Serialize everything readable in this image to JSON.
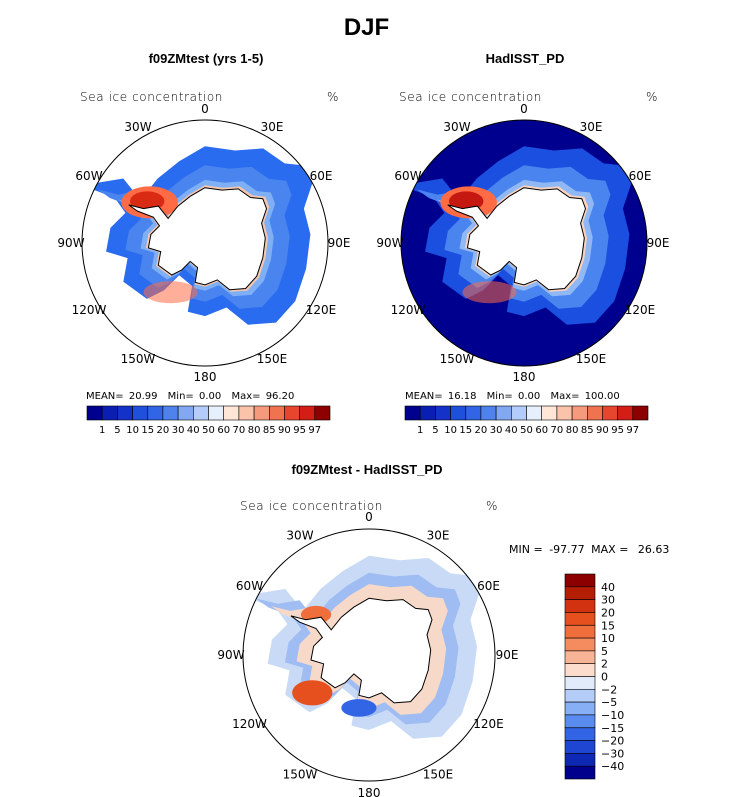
{
  "title": "DJF",
  "panels": [
    {
      "title": "f09ZMtest (yrs 1-5)",
      "variable": "Sea ice concentration",
      "units": "%",
      "stats": {
        "mean_label": "MEAN=",
        "mean": "20.99",
        "min_label": "Min=",
        "min": "0.00",
        "max_label": "Max=",
        "max": "96.20"
      },
      "field_colors": {
        "ocean": "#0b2fd2",
        "outer": "#2a6cf0",
        "mid": "#7fb0f5",
        "inner": "#f4c6b0",
        "edge": "#ff6b45",
        "core": "#d92a14"
      }
    },
    {
      "title": "HadISST_PD",
      "variable": "Sea ice concentration",
      "units": "%",
      "stats": {
        "mean_label": "MEAN=",
        "mean": "16.18",
        "min_label": "Min=",
        "min": "0.00",
        "max_label": "Max=",
        "max": "100.00"
      },
      "field_colors": {
        "ocean": "#00008f",
        "outer": "#1a4fe0",
        "mid": "#8fb8f5",
        "inner": "#f8d2c0",
        "edge": "#ff6b45",
        "core": "#c41810"
      }
    },
    {
      "title": "f09ZMtest - HadISST_PD",
      "variable": "Sea ice concentration",
      "units": "%",
      "minmax": {
        "min_label": "MIN =",
        "min": "-97.77",
        "max_label": "MAX =",
        "max": "26.63"
      }
    }
  ],
  "longitude_labels": [
    "0",
    "30E",
    "60E",
    "90E",
    "120E",
    "150E",
    "180",
    "150W",
    "120W",
    "90W",
    "60W",
    "30W"
  ],
  "chart_data": {
    "type": "heatmap",
    "projection": "south polar stereographic",
    "colorbar_main": {
      "levels": [
        "1",
        "5",
        "10",
        "15",
        "20",
        "30",
        "40",
        "50",
        "60",
        "70",
        "80",
        "85",
        "90",
        "95",
        "97"
      ],
      "colors": [
        "#00008f",
        "#0a1eb4",
        "#1432c8",
        "#1e50dc",
        "#3264e6",
        "#5082ee",
        "#82a8f4",
        "#b4ccfa",
        "#e6f0fc",
        "#ffe6d7",
        "#fac3aa",
        "#f59a7d",
        "#f0734f",
        "#e6462d",
        "#d21e14",
        "#8c0000"
      ]
    },
    "colorbar_diff": {
      "levels": [
        "40",
        "30",
        "20",
        "15",
        "10",
        "5",
        "2",
        "0",
        "−2",
        "−5",
        "−10",
        "−15",
        "−20",
        "−30",
        "−40"
      ],
      "colors": [
        "#8c0000",
        "#b41e05",
        "#d2320f",
        "#e6501e",
        "#f06e3c",
        "#f58c5f",
        "#f8b496",
        "#fbdccd",
        "#e1ebfa",
        "#b4ccf8",
        "#87aff5",
        "#5a8cf0",
        "#3264e6",
        "#1e46d2",
        "#0f28b4",
        "#00008c"
      ]
    }
  }
}
